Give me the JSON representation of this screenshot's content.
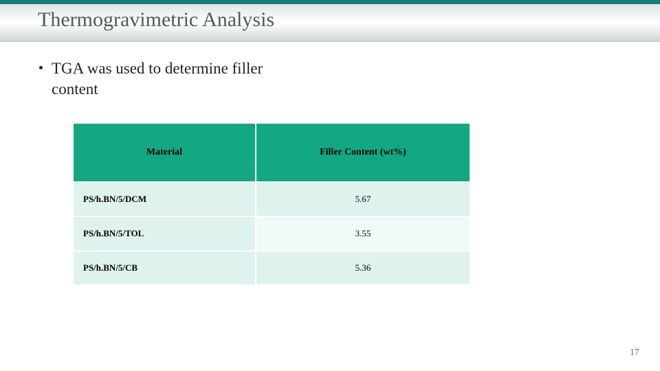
{
  "slide": {
    "title": "Thermogravimetric Analysis",
    "bullet": "TGA was used to determine filler content",
    "page_number": "17"
  },
  "table": {
    "type": "table",
    "header_bg": "#12a884",
    "row_colors": [
      "#dff3ee",
      "#f0faf7"
    ],
    "border_color": "#ffffff",
    "columns": [
      {
        "label": "Material",
        "align": "center",
        "width_pct": 46
      },
      {
        "label": "Filler Content (wt%)",
        "align": "center",
        "width_pct": 54
      }
    ],
    "rows": [
      {
        "material": "PS/h.BN/5/DCM",
        "filler": "5.67"
      },
      {
        "material": "PS/h.BN/5/TOL",
        "filler": "3.55"
      },
      {
        "material": "PS/h.BN/5/CB",
        "filler": "5.36"
      }
    ],
    "header_fontsize": 14,
    "cell_fontsize": 13
  },
  "colors": {
    "top_strip": "#1a7a7a",
    "title_text": "#4f5a5a",
    "background": "#ffffff"
  }
}
